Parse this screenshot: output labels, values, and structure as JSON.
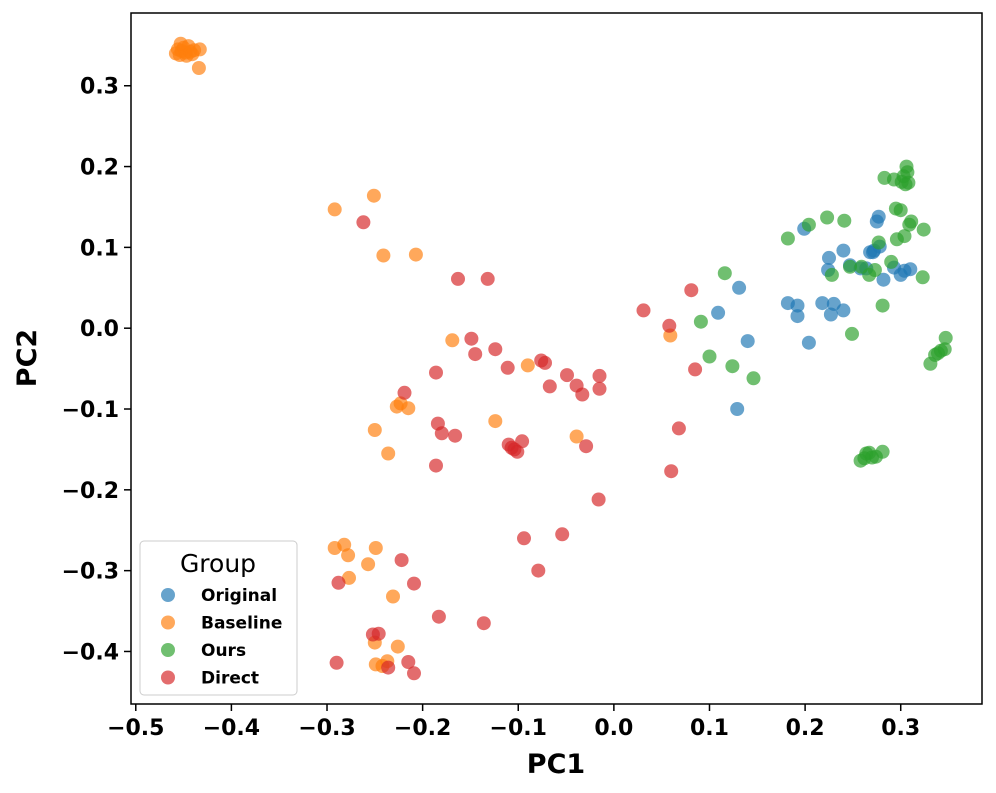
{
  "chart_data": {
    "type": "scatter",
    "xlabel": "PC1",
    "ylabel": "PC2",
    "xlim": [
      -0.505,
      0.385
    ],
    "ylim": [
      -0.465,
      0.39
    ],
    "xticks": [
      -0.5,
      -0.4,
      -0.3,
      -0.2,
      -0.1,
      0.0,
      0.1,
      0.2,
      0.3
    ],
    "xtick_labels": [
      "−0.5",
      "−0.4",
      "−0.3",
      "−0.2",
      "−0.1",
      "0.0",
      "0.1",
      "0.2",
      "0.3"
    ],
    "yticks": [
      -0.4,
      -0.3,
      -0.2,
      -0.1,
      0.0,
      0.1,
      0.2,
      0.3
    ],
    "ytick_labels": [
      "−0.4",
      "−0.3",
      "−0.2",
      "−0.1",
      "0.0",
      "0.1",
      "0.2",
      "0.3"
    ],
    "grid": false,
    "legend": {
      "title": "Group",
      "placement": "lower-left"
    },
    "series": [
      {
        "name": "Original",
        "color": "#1f77b4",
        "points": [
          [
            0.109,
            0.019
          ],
          [
            0.131,
            0.05
          ],
          [
            0.14,
            -0.016
          ],
          [
            0.129,
            -0.1
          ],
          [
            0.182,
            0.031
          ],
          [
            0.192,
            0.015
          ],
          [
            0.192,
            0.028
          ],
          [
            0.199,
            0.123
          ],
          [
            0.204,
            -0.018
          ],
          [
            0.218,
            0.031
          ],
          [
            0.224,
            0.072
          ],
          [
            0.225,
            0.087
          ],
          [
            0.227,
            0.017
          ],
          [
            0.23,
            0.03
          ],
          [
            0.24,
            0.022
          ],
          [
            0.24,
            0.096
          ],
          [
            0.247,
            0.078
          ],
          [
            0.258,
            0.074
          ],
          [
            0.264,
            0.074
          ],
          [
            0.268,
            0.094
          ],
          [
            0.271,
            0.094
          ],
          [
            0.272,
            0.096
          ],
          [
            0.275,
            0.132
          ],
          [
            0.277,
            0.138
          ],
          [
            0.278,
            0.101
          ],
          [
            0.282,
            0.06
          ],
          [
            0.293,
            0.075
          ],
          [
            0.3,
            0.066
          ],
          [
            0.304,
            0.071
          ],
          [
            0.31,
            0.073
          ]
        ]
      },
      {
        "name": "Baseline",
        "color": "#ff7f0e",
        "points": [
          [
            -0.458,
            0.34
          ],
          [
            -0.456,
            0.345
          ],
          [
            -0.454,
            0.338
          ],
          [
            -0.452,
            0.343
          ],
          [
            -0.45,
            0.347
          ],
          [
            -0.448,
            0.341
          ],
          [
            -0.447,
            0.337
          ],
          [
            -0.445,
            0.349
          ],
          [
            -0.443,
            0.342
          ],
          [
            -0.441,
            0.339
          ],
          [
            -0.439,
            0.344
          ],
          [
            -0.433,
            0.345
          ],
          [
            -0.434,
            0.322
          ],
          [
            -0.453,
            0.352
          ],
          [
            -0.292,
            0.147
          ],
          [
            -0.251,
            0.164
          ],
          [
            -0.241,
            0.09
          ],
          [
            -0.207,
            0.091
          ],
          [
            -0.169,
            -0.015
          ],
          [
            -0.227,
            -0.097
          ],
          [
            -0.215,
            -0.099
          ],
          [
            -0.223,
            -0.093
          ],
          [
            -0.25,
            -0.126
          ],
          [
            -0.236,
            -0.155
          ],
          [
            -0.124,
            -0.115
          ],
          [
            -0.09,
            -0.046
          ],
          [
            -0.039,
            -0.134
          ],
          [
            0.059,
            -0.009
          ],
          [
            -0.292,
            -0.272
          ],
          [
            -0.282,
            -0.268
          ],
          [
            -0.278,
            -0.281
          ],
          [
            -0.277,
            -0.309
          ],
          [
            -0.257,
            -0.292
          ],
          [
            -0.249,
            -0.272
          ],
          [
            -0.231,
            -0.332
          ],
          [
            -0.25,
            -0.389
          ],
          [
            -0.249,
            -0.416
          ],
          [
            -0.237,
            -0.412
          ],
          [
            -0.226,
            -0.394
          ],
          [
            -0.242,
            -0.418
          ]
        ]
      },
      {
        "name": "Ours",
        "color": "#2ca02c",
        "points": [
          [
            0.091,
            0.008
          ],
          [
            0.1,
            -0.035
          ],
          [
            0.116,
            0.068
          ],
          [
            0.124,
            -0.047
          ],
          [
            0.146,
            -0.062
          ],
          [
            0.182,
            0.111
          ],
          [
            0.204,
            0.128
          ],
          [
            0.223,
            0.137
          ],
          [
            0.228,
            0.066
          ],
          [
            0.241,
            0.133
          ],
          [
            0.249,
            -0.007
          ],
          [
            0.247,
            0.076
          ],
          [
            0.259,
            0.076
          ],
          [
            0.267,
            0.066
          ],
          [
            0.273,
            0.072
          ],
          [
            0.277,
            0.106
          ],
          [
            0.281,
            0.028
          ],
          [
            0.283,
            0.186
          ],
          [
            0.29,
            0.082
          ],
          [
            0.293,
            0.184
          ],
          [
            0.295,
            0.148
          ],
          [
            0.296,
            0.11
          ],
          [
            0.3,
            0.146
          ],
          [
            0.301,
            0.181
          ],
          [
            0.303,
            0.188
          ],
          [
            0.304,
            0.114
          ],
          [
            0.305,
            0.178
          ],
          [
            0.306,
            0.2
          ],
          [
            0.307,
            0.193
          ],
          [
            0.308,
            0.18
          ],
          [
            0.309,
            0.128
          ],
          [
            0.311,
            0.132
          ],
          [
            0.324,
            0.122
          ],
          [
            0.323,
            0.063
          ],
          [
            0.331,
            -0.044
          ],
          [
            0.336,
            -0.033
          ],
          [
            0.339,
            -0.031
          ],
          [
            0.342,
            -0.028
          ],
          [
            0.346,
            -0.026
          ],
          [
            0.347,
            -0.012
          ],
          [
            0.258,
            -0.164
          ],
          [
            0.262,
            -0.161
          ],
          [
            0.264,
            -0.155
          ],
          [
            0.267,
            -0.154
          ],
          [
            0.27,
            -0.16
          ],
          [
            0.274,
            -0.159
          ],
          [
            0.281,
            -0.153
          ]
        ]
      },
      {
        "name": "Direct",
        "color": "#d62728",
        "points": [
          [
            -0.262,
            0.131
          ],
          [
            -0.163,
            0.061
          ],
          [
            -0.132,
            0.061
          ],
          [
            -0.186,
            -0.055
          ],
          [
            -0.149,
            -0.013
          ],
          [
            -0.145,
            -0.032
          ],
          [
            -0.124,
            -0.026
          ],
          [
            -0.219,
            -0.08
          ],
          [
            -0.184,
            -0.118
          ],
          [
            -0.18,
            -0.13
          ],
          [
            -0.166,
            -0.133
          ],
          [
            -0.186,
            -0.17
          ],
          [
            -0.111,
            -0.049
          ],
          [
            -0.076,
            -0.04
          ],
          [
            -0.072,
            -0.043
          ],
          [
            -0.067,
            -0.072
          ],
          [
            -0.049,
            -0.058
          ],
          [
            -0.039,
            -0.071
          ],
          [
            -0.033,
            -0.082
          ],
          [
            -0.015,
            -0.059
          ],
          [
            -0.015,
            -0.075
          ],
          [
            -0.11,
            -0.144
          ],
          [
            -0.107,
            -0.148
          ],
          [
            -0.104,
            -0.15
          ],
          [
            -0.101,
            -0.153
          ],
          [
            -0.096,
            -0.14
          ],
          [
            -0.029,
            -0.146
          ],
          [
            -0.094,
            -0.26
          ],
          [
            -0.079,
            -0.3
          ],
          [
            -0.054,
            -0.255
          ],
          [
            -0.016,
            -0.212
          ],
          [
            0.031,
            0.022
          ],
          [
            0.058,
            0.003
          ],
          [
            0.06,
            -0.177
          ],
          [
            0.068,
            -0.124
          ],
          [
            0.081,
            0.047
          ],
          [
            0.085,
            -0.051
          ],
          [
            -0.288,
            -0.315
          ],
          [
            -0.222,
            -0.287
          ],
          [
            -0.209,
            -0.316
          ],
          [
            -0.183,
            -0.357
          ],
          [
            -0.136,
            -0.365
          ],
          [
            -0.252,
            -0.379
          ],
          [
            -0.246,
            -0.378
          ],
          [
            -0.29,
            -0.414
          ],
          [
            -0.236,
            -0.42
          ],
          [
            -0.215,
            -0.413
          ],
          [
            -0.209,
            -0.427
          ]
        ]
      }
    ]
  }
}
